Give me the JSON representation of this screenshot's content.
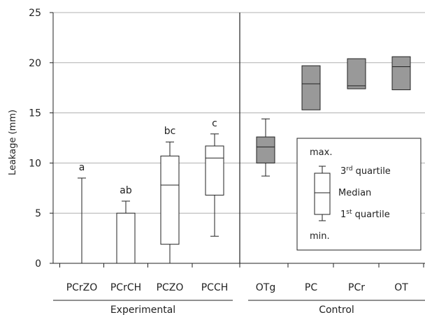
{
  "chart_data": {
    "type": "boxplot",
    "ylabel": "Leakage (mm)",
    "ylim": [
      0,
      25
    ],
    "yticks": [
      0,
      5,
      10,
      15,
      20,
      25
    ],
    "grid": true,
    "categories": [
      "PCrZO",
      "PCrCH",
      "PCZO",
      "PCCH",
      "OTg",
      "PC",
      "PCr",
      "OT"
    ],
    "groups": [
      {
        "name": "Experimental",
        "categories": [
          "PCrZO",
          "PCrCH",
          "PCZO",
          "PCCH"
        ]
      },
      {
        "name": "Control",
        "categories": [
          "OTg",
          "PC",
          "PCr",
          "OT"
        ]
      }
    ],
    "boxes": [
      {
        "category": "PCrZO",
        "min": 0,
        "q1": 0,
        "median": 0,
        "q3": 0,
        "max": 8.5,
        "letter": "a",
        "fill": "#ffffff"
      },
      {
        "category": "PCrCH",
        "min": 0,
        "q1": 0,
        "median": 0,
        "q3": 5.0,
        "max": 6.2,
        "letter": "ab",
        "fill": "#ffffff"
      },
      {
        "category": "PCZO",
        "min": 0,
        "q1": 1.9,
        "median": 7.8,
        "q3": 10.7,
        "max": 12.1,
        "letter": "bc",
        "fill": "#ffffff"
      },
      {
        "category": "PCCH",
        "min": 2.7,
        "q1": 6.8,
        "median": 10.5,
        "q3": 11.7,
        "max": 12.9,
        "letter": "c",
        "fill": "#ffffff"
      },
      {
        "category": "OTg",
        "min": 8.7,
        "q1": 10.0,
        "median": 11.6,
        "q3": 12.6,
        "max": 14.4,
        "letter": "",
        "fill": "#999999"
      },
      {
        "category": "PC",
        "min": 15.3,
        "q1": 15.3,
        "median": 17.9,
        "q3": 19.7,
        "max": 19.7,
        "letter": "",
        "fill": "#999999"
      },
      {
        "category": "PCr",
        "min": 17.4,
        "q1": 17.4,
        "median": 17.7,
        "q3": 20.4,
        "max": 20.4,
        "letter": "",
        "fill": "#999999"
      },
      {
        "category": "OT",
        "min": 17.3,
        "q1": 17.3,
        "median": 19.6,
        "q3": 20.6,
        "max": 20.6,
        "letter": "",
        "fill": "#999999"
      }
    ],
    "legend": {
      "position": "bottom-right",
      "max": "max.",
      "q3_base": "3",
      "q3_sup": "rd",
      "q3_rest": " quartile",
      "median": "Median",
      "q1_base": "1",
      "q1_sup": "st",
      "q1_rest": " quartile",
      "min": "min."
    }
  }
}
